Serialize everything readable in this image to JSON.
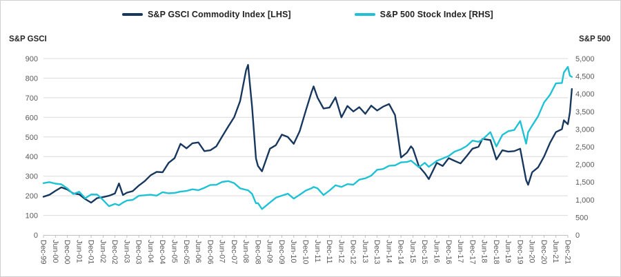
{
  "chart_data": {
    "type": "line",
    "legend_position": "top",
    "grid": "horizontal",
    "y_left": {
      "title": "S&P GSCI",
      "min": 0,
      "max": 900,
      "step": 100,
      "tick_labels": [
        "0",
        "100",
        "200",
        "300",
        "400",
        "500",
        "600",
        "700",
        "800",
        "900"
      ]
    },
    "y_right": {
      "title": "S&P 500",
      "min": 0,
      "max": 5000,
      "step": 500,
      "tick_labels": [
        "0",
        "500",
        "1,000",
        "1,500",
        "2,000",
        "2,500",
        "3,000",
        "3,500",
        "4,000",
        "4,500",
        "5,000"
      ]
    },
    "x_tick_labels": [
      "Dec-99",
      "Jun-00",
      "Dec-00",
      "Jun-01",
      "Dec-01",
      "Jun-02",
      "Dec-02",
      "Jun-03",
      "Dec-03",
      "Jun-04",
      "Dec-04",
      "Jun-05",
      "Dec-05",
      "Jun-06",
      "Dec-06",
      "Jun-07",
      "Dec-07",
      "Jun-08",
      "Dec-08",
      "Jun-09",
      "Dec-09",
      "Jun-10",
      "Dec-10",
      "Jun-11",
      "Dec-11",
      "Jun-12",
      "Dec-12",
      "Jun-13",
      "Dec-13",
      "Jun-14",
      "Dec-14",
      "Jun-15",
      "Dec-15",
      "Jun-16",
      "Dec-16",
      "Jun-17",
      "Dec-17",
      "Jun-18",
      "Dec-18",
      "Jun-19",
      "Dec-19",
      "Jun-20",
      "Dec-20",
      "Jun-21",
      "Dec-21"
    ],
    "series": [
      {
        "key": "gsci",
        "name": "S&P GSCI Commodity Index [LHS]",
        "axis": "left",
        "color": "#17375E"
      },
      {
        "key": "spx",
        "name": "S&P 500 Stock Index [RHS]",
        "axis": "right",
        "color": "#1EC2D4"
      }
    ],
    "columns": [
      "date",
      "gsci",
      "spx"
    ],
    "points": [
      [
        "Dec-99",
        195,
        1469
      ],
      [
        "Mar-00",
        205,
        1499
      ],
      [
        "Jun-00",
        225,
        1455
      ],
      [
        "Sep-00",
        243,
        1436
      ],
      [
        "Dec-00",
        232,
        1320
      ],
      [
        "Mar-01",
        212,
        1160
      ],
      [
        "Jun-01",
        207,
        1224
      ],
      [
        "Sep-01",
        183,
        1041
      ],
      [
        "Dec-01",
        165,
        1148
      ],
      [
        "Mar-02",
        188,
        1147
      ],
      [
        "Jun-02",
        193,
        990
      ],
      [
        "Sep-02",
        200,
        815
      ],
      [
        "Dec-02",
        212,
        880
      ],
      [
        "Feb-03",
        263,
        841
      ],
      [
        "Apr-03",
        204,
        917
      ],
      [
        "Jun-03",
        216,
        975
      ],
      [
        "Sep-03",
        224,
        996
      ],
      [
        "Dec-03",
        252,
        1112
      ],
      [
        "Mar-04",
        275,
        1126
      ],
      [
        "Jun-04",
        305,
        1141
      ],
      [
        "Sep-04",
        322,
        1115
      ],
      [
        "Dec-04",
        320,
        1212
      ],
      [
        "Mar-05",
        368,
        1181
      ],
      [
        "Jun-05",
        392,
        1191
      ],
      [
        "Sep-05",
        465,
        1229
      ],
      [
        "Dec-05",
        442,
        1248
      ],
      [
        "Mar-06",
        468,
        1295
      ],
      [
        "Jun-06",
        472,
        1270
      ],
      [
        "Sep-06",
        428,
        1336
      ],
      [
        "Dec-06",
        432,
        1418
      ],
      [
        "Mar-07",
        452,
        1421
      ],
      [
        "Jun-07",
        503,
        1503
      ],
      [
        "Sep-07",
        553,
        1527
      ],
      [
        "Dec-07",
        601,
        1468
      ],
      [
        "Mar-08",
        683,
        1323
      ],
      [
        "Jun-08",
        840,
        1280
      ],
      [
        "Jul-08",
        868,
        1267
      ],
      [
        "Sep-08",
        655,
        1166
      ],
      [
        "Nov-08",
        390,
        896
      ],
      [
        "Dec-08",
        352,
        903
      ],
      [
        "Feb-09",
        325,
        735
      ],
      [
        "Jun-09",
        440,
        919
      ],
      [
        "Sep-09",
        458,
        1057
      ],
      [
        "Dec-09",
        512,
        1115
      ],
      [
        "Mar-10",
        500,
        1169
      ],
      [
        "Jun-10",
        465,
        1031
      ],
      [
        "Sep-10",
        530,
        1141
      ],
      [
        "Dec-10",
        632,
        1258
      ],
      [
        "Mar-11",
        730,
        1326
      ],
      [
        "Apr-11",
        758,
        1364
      ],
      [
        "Jun-11",
        700,
        1321
      ],
      [
        "Sep-11",
        645,
        1131
      ],
      [
        "Dec-11",
        650,
        1258
      ],
      [
        "Mar-12",
        702,
        1408
      ],
      [
        "Jun-12",
        600,
        1362
      ],
      [
        "Sep-12",
        658,
        1441
      ],
      [
        "Dec-12",
        630,
        1426
      ],
      [
        "Mar-13",
        652,
        1569
      ],
      [
        "Jun-13",
        618,
        1606
      ],
      [
        "Sep-13",
        660,
        1682
      ],
      [
        "Dec-13",
        635,
        1848
      ],
      [
        "Mar-14",
        655,
        1872
      ],
      [
        "Jun-14",
        668,
        1960
      ],
      [
        "Sep-14",
        612,
        1972
      ],
      [
        "Dec-14",
        395,
        2059
      ],
      [
        "Mar-15",
        420,
        2068
      ],
      [
        "May-15",
        452,
        2107
      ],
      [
        "Jun-15",
        440,
        2063
      ],
      [
        "Sep-15",
        350,
        1920
      ],
      [
        "Dec-15",
        315,
        2044
      ],
      [
        "Feb-16",
        285,
        1932
      ],
      [
        "Jun-16",
        368,
        2099
      ],
      [
        "Sep-16",
        352,
        2168
      ],
      [
        "Dec-16",
        392,
        2239
      ],
      [
        "Mar-17",
        378,
        2363
      ],
      [
        "Jun-17",
        365,
        2423
      ],
      [
        "Sep-17",
        402,
        2519
      ],
      [
        "Dec-17",
        440,
        2674
      ],
      [
        "Mar-18",
        450,
        2641
      ],
      [
        "May-18",
        490,
        2705
      ],
      [
        "Sep-18",
        484,
        2914
      ],
      [
        "Dec-18",
        385,
        2507
      ],
      [
        "Mar-19",
        432,
        2834
      ],
      [
        "Jun-19",
        425,
        2942
      ],
      [
        "Sep-19",
        428,
        2977
      ],
      [
        "Dec-19",
        440,
        3231
      ],
      [
        "Mar-20",
        280,
        2585
      ],
      [
        "Apr-20",
        256,
        2912
      ],
      [
        "Jun-20",
        320,
        3100
      ],
      [
        "Sep-20",
        345,
        3363
      ],
      [
        "Dec-20",
        400,
        3756
      ],
      [
        "Mar-21",
        470,
        3973
      ],
      [
        "Jun-21",
        525,
        4298
      ],
      [
        "Sep-21",
        540,
        4308
      ],
      [
        "Oct-21",
        585,
        4605
      ],
      [
        "Dec-21",
        565,
        4766
      ],
      [
        "Jan-22",
        625,
        4516
      ],
      [
        "Feb-22",
        745,
        4480
      ]
    ]
  }
}
